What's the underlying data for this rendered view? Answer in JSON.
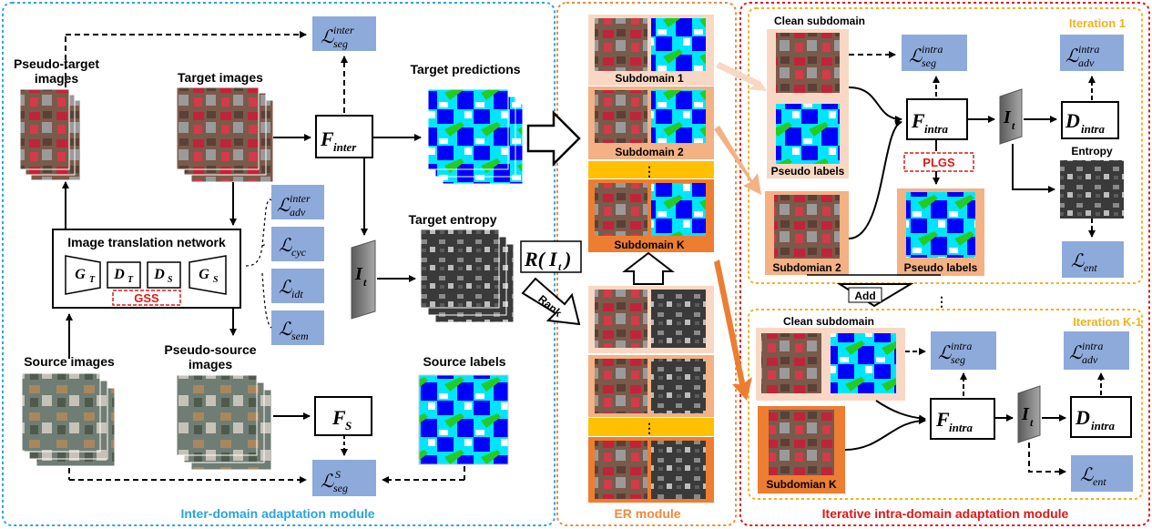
{
  "modules": {
    "inter": "Inter-domain adaptation module",
    "er": "ER module",
    "intra": "Iterative intra-domain adaptation module"
  },
  "labels": {
    "pseudo_target_1": "Pseudo-target",
    "pseudo_target_2": "images",
    "target_images": "Target images",
    "target_predictions": "Target predictions",
    "target_entropy": "Target entropy",
    "source_images": "Source images",
    "pseudo_source_1": "Pseudo-source",
    "pseudo_source_2": "images",
    "source_labels": "Source labels",
    "image_translation_network": "Image translation network",
    "gss": "GSS",
    "rank": "Rank",
    "subdomain_1": "Subdomain 1",
    "subdomain_2": "Subdomain 2",
    "subdomain_k": "Subdomain K",
    "dots": "⋮",
    "iteration_1": "Iteration 1",
    "iteration_k1": "Iteration K-1",
    "clean_subdomain": "Clean subdomain",
    "clean_subdomain_b": "Clean subdomain",
    "pseudo_labels": "Pseudo labels",
    "pseudo_labels_b": "Pseudo labels",
    "subdomian_2": "Subdomian 2",
    "subdomian_k": "Subdomian K",
    "plgs": "PLGS",
    "add": "Add",
    "entropy": "Entropy"
  },
  "math": {
    "l": "ℒ",
    "seg": "seg",
    "adv": "adv",
    "inter": "inter",
    "intra": "intra",
    "cyc": "cyc",
    "idt": "idt",
    "sem": "sem",
    "ent": "ent",
    "s_sup": "S",
    "F": "F",
    "D": "D",
    "I": "I",
    "t": "t",
    "S": "S",
    "G": "G",
    "T": "T",
    "R_left": "R(",
    "R_right": ")"
  },
  "colors": {
    "inter_border": "#2aa4de",
    "er_border": "#f08a3c",
    "intra_border": "#e01818",
    "iteration": "#f2b21c",
    "loss_box": "#8eaadb",
    "subdomain_light": "#f8d8c4",
    "subdomain_mid": "#f4b183",
    "subdomain_dark": "#ed7d31",
    "yellow_band": "#ffc000",
    "arrow_orange": "#f08a3c"
  }
}
